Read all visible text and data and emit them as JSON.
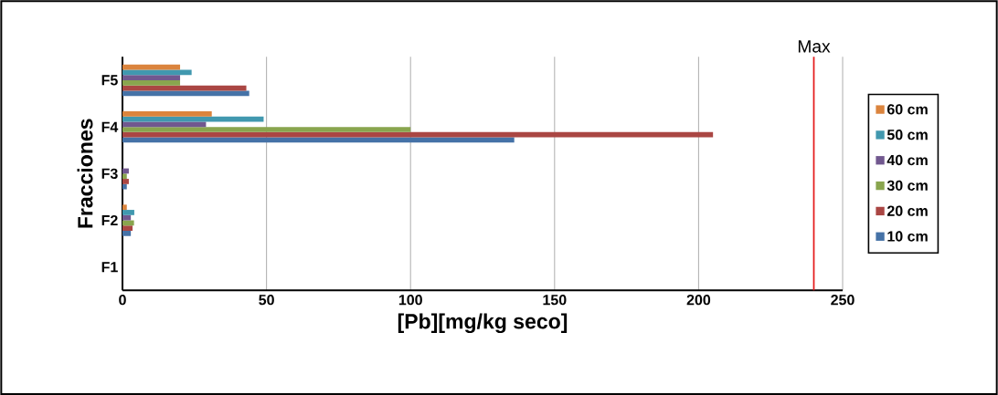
{
  "chart_data": {
    "type": "bar",
    "orientation": "horizontal",
    "categories": [
      "F5",
      "F4",
      "F3",
      "F2",
      "F1"
    ],
    "series": [
      {
        "name": "10 cm",
        "color": "#4572a7",
        "values": [
          44,
          136,
          1.5,
          2.9,
          0
        ]
      },
      {
        "name": "20 cm",
        "color": "#aa4643",
        "values": [
          43,
          205,
          2.2,
          3.5,
          0
        ]
      },
      {
        "name": "30 cm",
        "color": "#89a54e",
        "values": [
          20,
          100,
          1.5,
          4,
          0
        ]
      },
      {
        "name": "40 cm",
        "color": "#71588f",
        "values": [
          20,
          29,
          2.2,
          2.9,
          0
        ]
      },
      {
        "name": "50 cm",
        "color": "#4198af",
        "values": [
          24,
          49,
          0,
          4.1,
          0
        ]
      },
      {
        "name": "60 cm",
        "color": "#db843d",
        "values": [
          20,
          31,
          0,
          1.5,
          0
        ]
      }
    ],
    "xlim": [
      0,
      250
    ],
    "xticks": [
      0,
      50,
      100,
      150,
      200,
      250
    ],
    "xlabel": "[Pb][mg/kg seco]",
    "ylabel": "Fracciones",
    "grid": "x",
    "legend": "right",
    "ref_lines": [
      {
        "axis": "x",
        "value": 240,
        "label": "Max",
        "color": "#e41a1c"
      }
    ]
  }
}
